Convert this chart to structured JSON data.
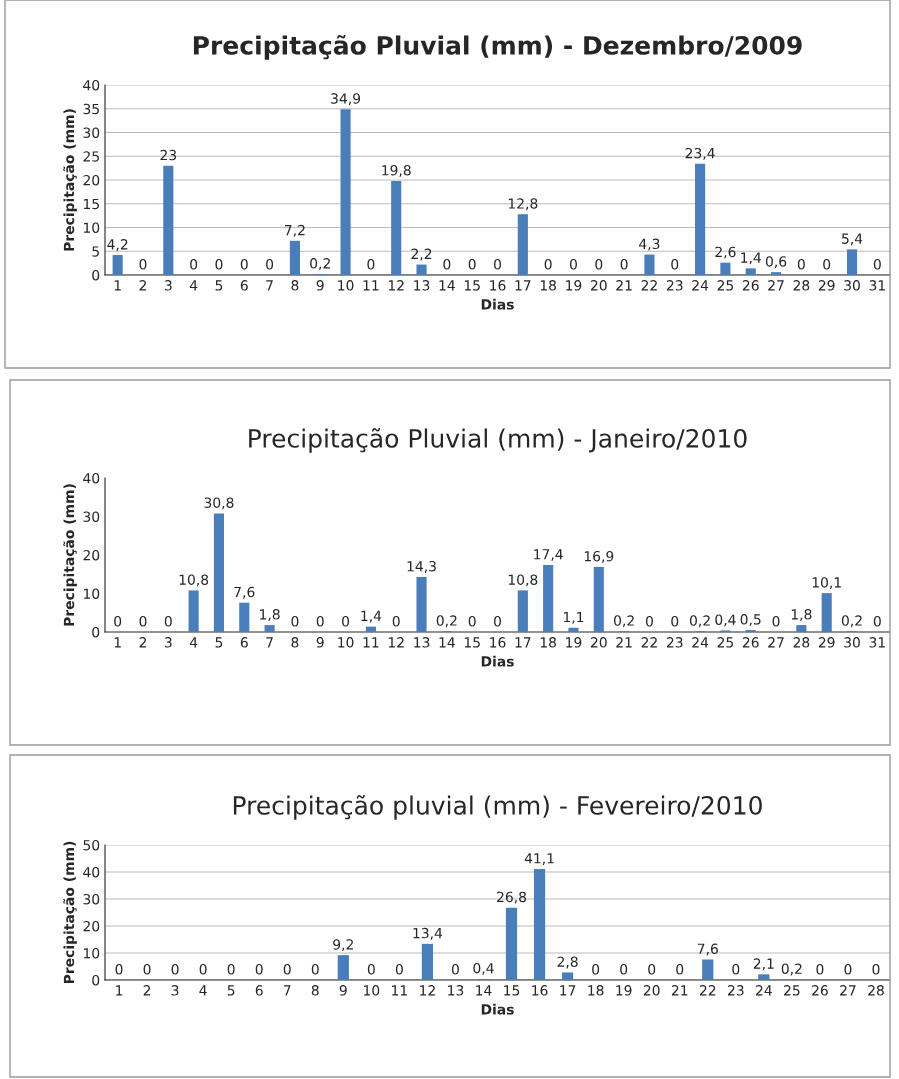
{
  "chart_data": [
    {
      "type": "bar",
      "title": "Precipitação Pluvial (mm) - Dezembro/2009",
      "xlabel": "Dias",
      "ylabel": "Precipitação (mm)",
      "categories": [
        "1",
        "2",
        "3",
        "4",
        "5",
        "6",
        "7",
        "8",
        "9",
        "10",
        "11",
        "12",
        "13",
        "14",
        "15",
        "16",
        "17",
        "18",
        "19",
        "20",
        "21",
        "22",
        "23",
        "24",
        "25",
        "26",
        "27",
        "28",
        "29",
        "30",
        "31"
      ],
      "values": [
        4.2,
        0,
        23,
        0,
        0,
        0,
        0,
        7.2,
        0.2,
        34.9,
        0,
        19.8,
        2.2,
        0,
        0,
        0,
        12.8,
        0,
        0,
        0,
        0,
        4.3,
        0,
        23.4,
        2.6,
        1.4,
        0.6,
        0,
        0,
        5.4,
        0
      ],
      "value_labels": [
        "4,2",
        "0",
        "23",
        "0",
        "0",
        "0",
        "0",
        "7,2",
        "0,2",
        "34,9",
        "0",
        "19,8",
        "2,2",
        "0",
        "0",
        "0",
        "12,8",
        "0",
        "0",
        "0",
        "0",
        "4,3",
        "0",
        "23,4",
        "2,6",
        "1,4",
        "0,6",
        "0",
        "0",
        "5,4",
        "0"
      ],
      "color": "#4a7ebb",
      "ylim": [
        0,
        40
      ],
      "yticks": [
        0,
        5,
        10,
        15,
        20,
        25,
        30,
        35,
        40
      ],
      "grid": "y"
    },
    {
      "type": "bar",
      "title": "Precipitação Pluvial (mm) - Janeiro/2010",
      "xlabel": "Dias",
      "ylabel": "Precipitação (mm)",
      "categories": [
        "1",
        "2",
        "3",
        "4",
        "5",
        "6",
        "7",
        "8",
        "9",
        "10",
        "11",
        "12",
        "13",
        "14",
        "15",
        "16",
        "17",
        "18",
        "19",
        "20",
        "21",
        "22",
        "23",
        "24",
        "25",
        "26",
        "27",
        "28",
        "29",
        "30",
        "31"
      ],
      "values": [
        0,
        0,
        0,
        10.8,
        30.8,
        7.6,
        1.8,
        0,
        0,
        0,
        1.4,
        0,
        14.3,
        0.2,
        0,
        0,
        10.8,
        17.4,
        1.1,
        16.9,
        0.2,
        0,
        0,
        0.2,
        0.4,
        0.5,
        0,
        1.8,
        10.1,
        0.2,
        0
      ],
      "value_labels": [
        "0",
        "0",
        "0",
        "10,8",
        "30,8",
        "7,6",
        "1,8",
        "0",
        "0",
        "0",
        "1,4",
        "0",
        "14,3",
        "0,2",
        "0",
        "0",
        "10,8",
        "17,4",
        "1,1",
        "16,9",
        "0,2",
        "0",
        "0",
        "0,2",
        "0,4",
        "0,5",
        "0",
        "1,8",
        "10,1",
        "0,2",
        "0"
      ],
      "color": "#4a7ebb",
      "ylim": [
        0,
        40
      ],
      "yticks": [
        0,
        10,
        20,
        30,
        40
      ],
      "grid": false
    },
    {
      "type": "bar",
      "title": "Precipitação pluvial (mm) - Fevereiro/2010",
      "xlabel": "Dias",
      "ylabel": "Precipitação (mm)",
      "categories": [
        "1",
        "2",
        "3",
        "4",
        "5",
        "6",
        "7",
        "8",
        "9",
        "10",
        "11",
        "12",
        "13",
        "14",
        "15",
        "16",
        "17",
        "18",
        "19",
        "20",
        "21",
        "22",
        "23",
        "24",
        "25",
        "26",
        "27",
        "28"
      ],
      "values": [
        0,
        0,
        0,
        0,
        0,
        0,
        0,
        0,
        9.2,
        0,
        0,
        13.4,
        0,
        0.4,
        26.8,
        41.1,
        2.8,
        0,
        0,
        0,
        0,
        7.6,
        0,
        2.1,
        0.2,
        0,
        0,
        0
      ],
      "value_labels": [
        "0",
        "0",
        "0",
        "0",
        "0",
        "0",
        "0",
        "0",
        "9,2",
        "0",
        "0",
        "13,4",
        "0",
        "0,4",
        "26,8",
        "41,1",
        "2,8",
        "0",
        "0",
        "0",
        "0",
        "7,6",
        "0",
        "2,1",
        "0,2",
        "0",
        "0",
        "0"
      ],
      "color": "#4a7ebb",
      "ylim": [
        0,
        50
      ],
      "yticks": [
        0,
        10,
        20,
        30,
        40,
        50
      ],
      "grid": "y"
    }
  ]
}
